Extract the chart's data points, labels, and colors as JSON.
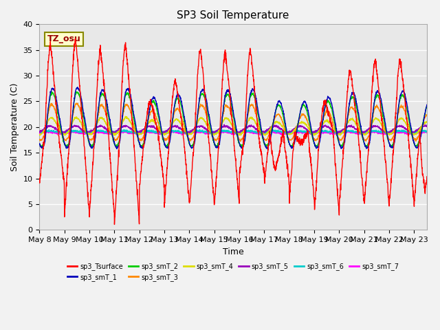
{
  "title": "SP3 Soil Temperature",
  "xlabel": "Time",
  "ylabel": "Soil Temperature (C)",
  "ylim": [
    0,
    40
  ],
  "annotation_text": "TZ_osu",
  "x_tick_labels": [
    "May 8",
    "May 9",
    "May 10",
    "May 11",
    "May 12",
    "May 13",
    "May 14",
    "May 15",
    "May 16",
    "May 17",
    "May 18",
    "May 19",
    "May 20",
    "May 21",
    "May 22",
    "May 23"
  ],
  "legend_entries": [
    {
      "label": "sp3_Tsurface",
      "color": "#ff0000"
    },
    {
      "label": "sp3_smT_1",
      "color": "#0000bb"
    },
    {
      "label": "sp3_smT_2",
      "color": "#00cc00"
    },
    {
      "label": "sp3_smT_3",
      "color": "#ff8800"
    },
    {
      "label": "sp3_smT_4",
      "color": "#dddd00"
    },
    {
      "label": "sp3_smT_5",
      "color": "#9900bb"
    },
    {
      "label": "sp3_smT_6",
      "color": "#00cccc"
    },
    {
      "label": "sp3_smT_7",
      "color": "#ff00ff"
    }
  ],
  "plot_bg_color": "#e8e8e8",
  "fig_bg_color": "#f2f2f2",
  "grid_color": "#ffffff",
  "yticks": [
    0,
    5,
    10,
    15,
    20,
    25,
    30,
    35,
    40
  ]
}
